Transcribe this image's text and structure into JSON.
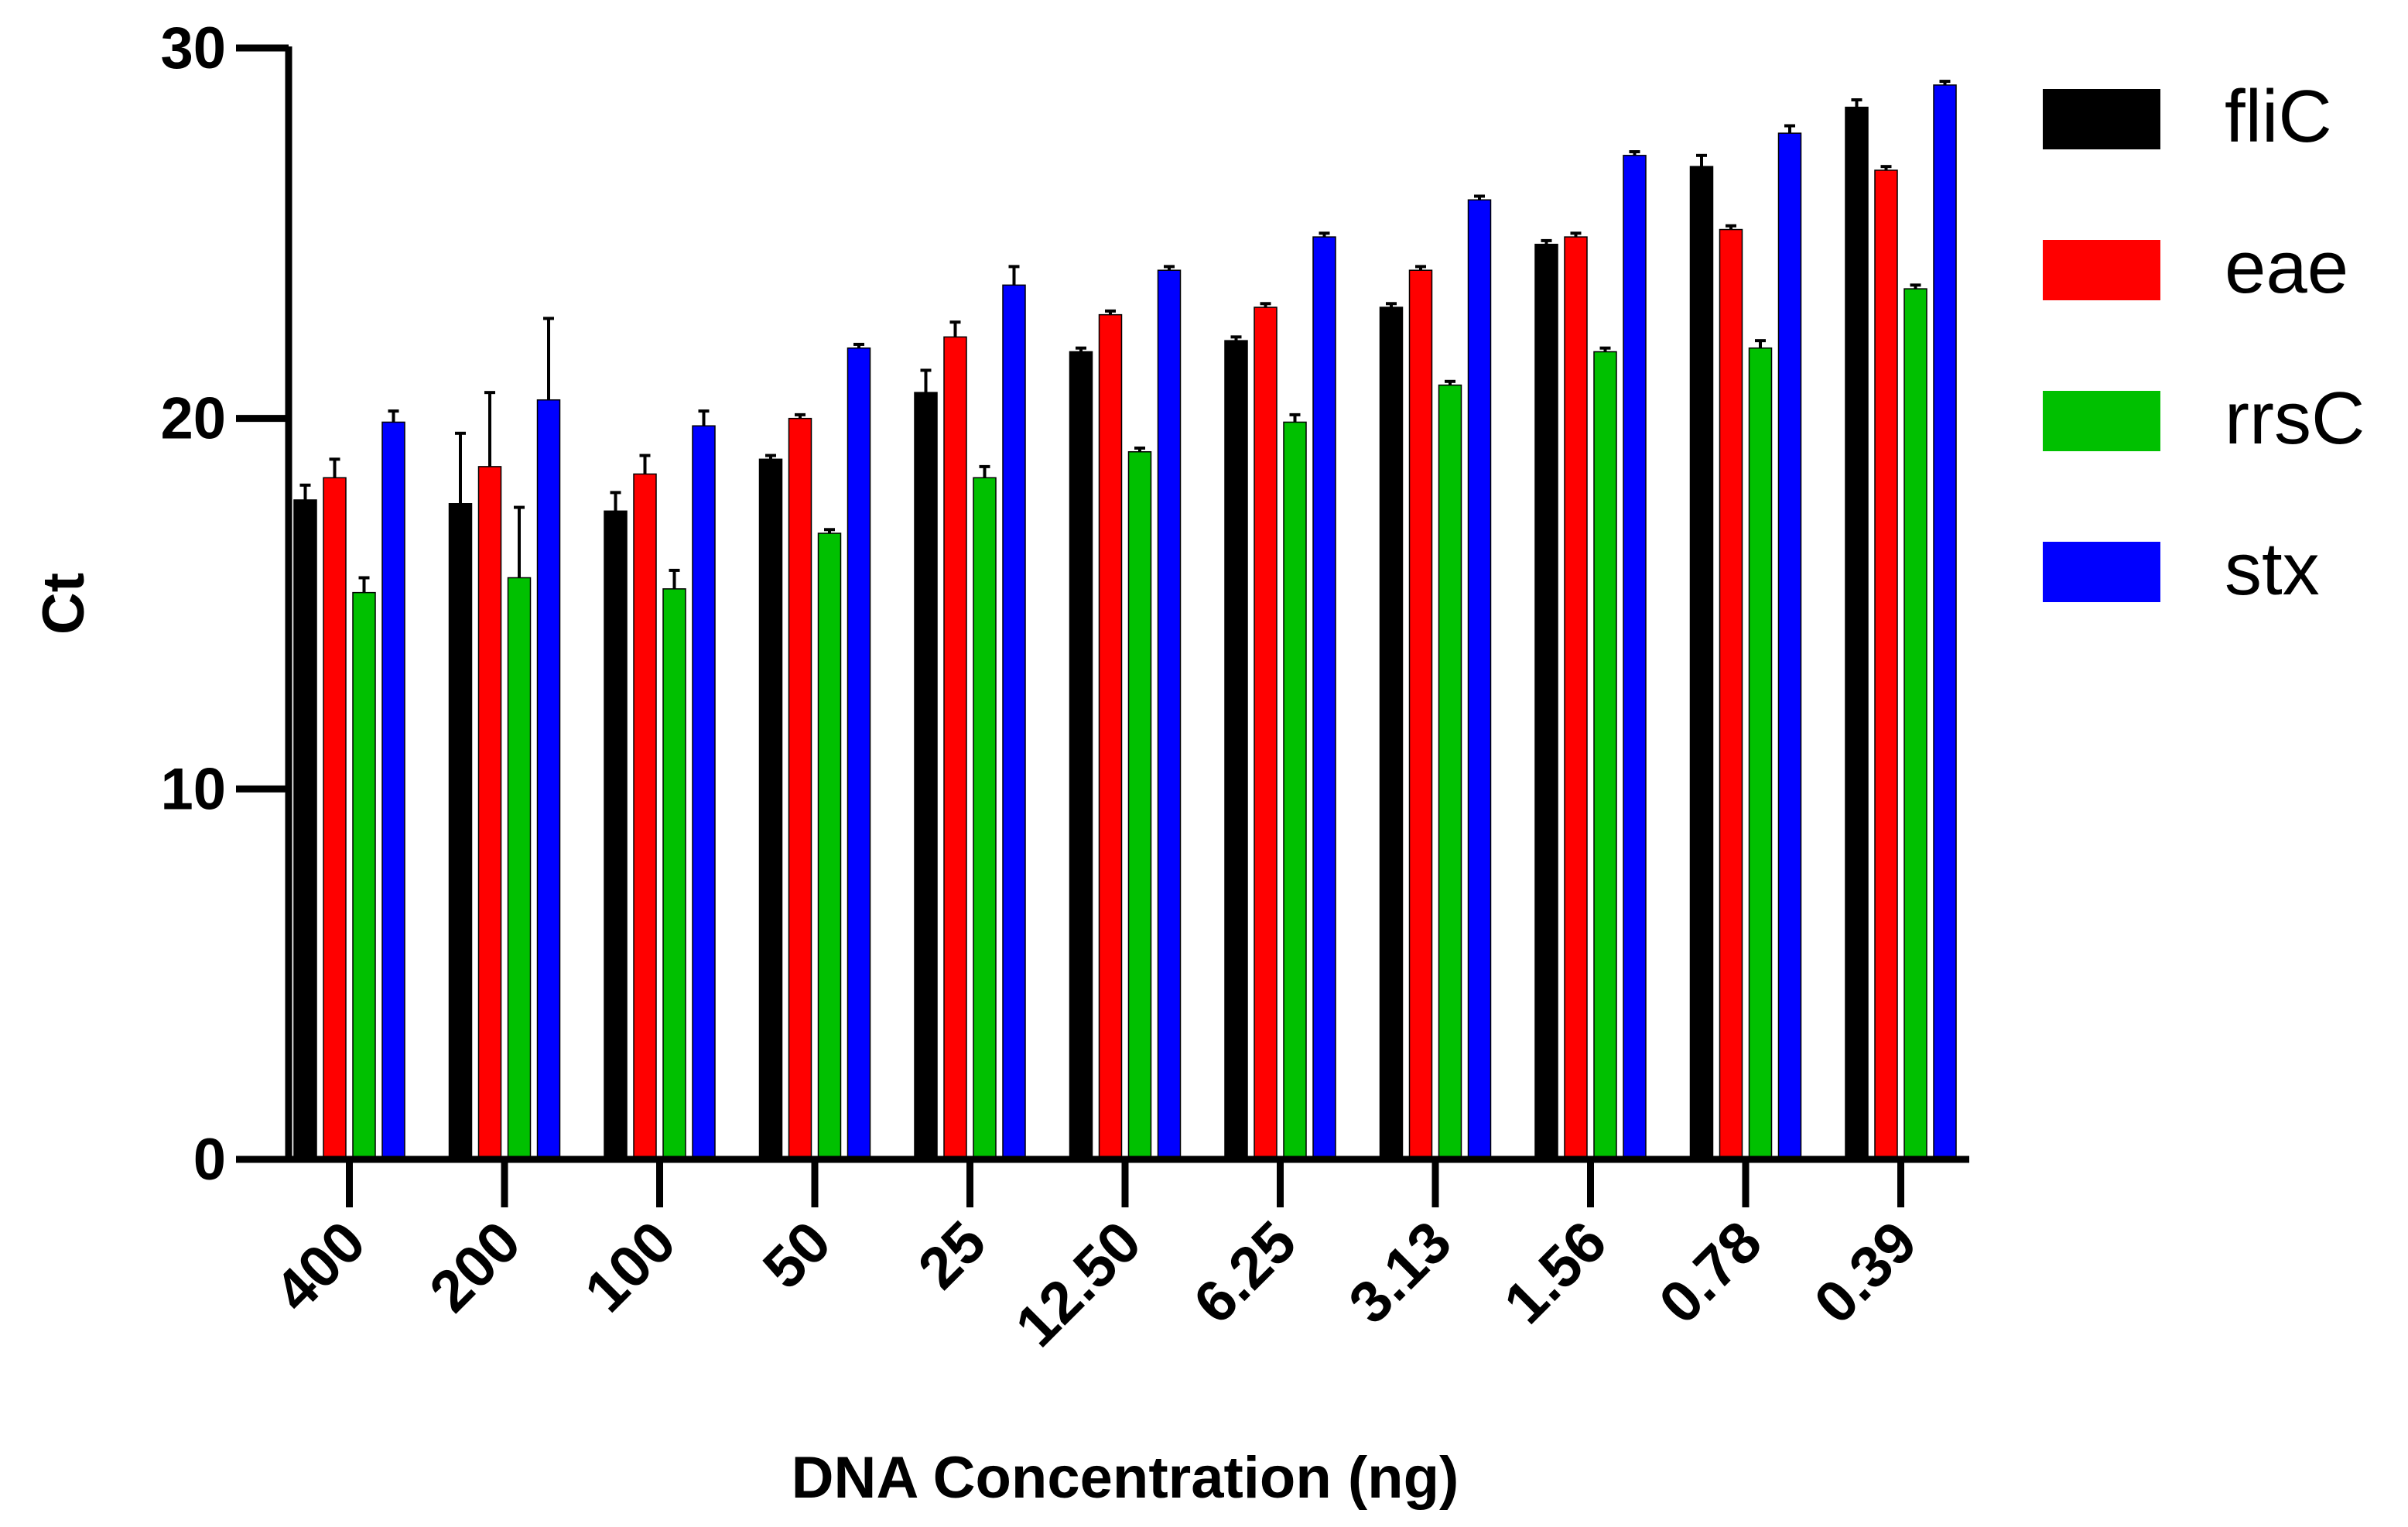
{
  "chart_data": {
    "type": "bar",
    "title": "",
    "xlabel": "DNA Concentration (ng)",
    "ylabel": "Ct",
    "ylim": [
      0,
      30
    ],
    "yticks": [
      0,
      10,
      20,
      30
    ],
    "grid": false,
    "legend_position": "top-right",
    "categories": [
      "400",
      "200",
      "100",
      "50",
      "25",
      "12.50",
      "6.25",
      "3.13",
      "1.56",
      "0.78",
      "0.39"
    ],
    "series": [
      {
        "name": "fliC",
        "color": "#000000",
        "values": [
          17.8,
          17.7,
          17.5,
          18.9,
          20.7,
          21.8,
          22.1,
          23.0,
          24.7,
          26.8,
          28.4
        ],
        "errors": [
          0.4,
          1.9,
          0.5,
          0.1,
          0.6,
          0.1,
          0.1,
          0.1,
          0.1,
          0.3,
          0.2
        ]
      },
      {
        "name": "eae",
        "color": "#ff0000",
        "values": [
          18.4,
          18.7,
          18.5,
          20.0,
          22.2,
          22.8,
          23.0,
          24.0,
          24.9,
          25.1,
          26.7
        ],
        "errors": [
          0.5,
          2.0,
          0.5,
          0.1,
          0.4,
          0.1,
          0.1,
          0.1,
          0.1,
          0.1,
          0.1
        ]
      },
      {
        "name": "rrsC",
        "color": "#00c000",
        "values": [
          15.3,
          15.7,
          15.4,
          16.9,
          18.4,
          19.1,
          19.9,
          20.9,
          21.8,
          21.9,
          23.5
        ],
        "errors": [
          0.4,
          1.9,
          0.5,
          0.1,
          0.3,
          0.1,
          0.2,
          0.1,
          0.1,
          0.2,
          0.1
        ]
      },
      {
        "name": "stx",
        "color": "#0000ff",
        "values": [
          19.9,
          20.5,
          19.8,
          21.9,
          23.6,
          24.0,
          24.9,
          25.9,
          27.1,
          27.7,
          29.0
        ],
        "errors": [
          0.3,
          2.2,
          0.4,
          0.1,
          0.5,
          0.1,
          0.1,
          0.1,
          0.1,
          0.2,
          0.1
        ]
      }
    ]
  }
}
